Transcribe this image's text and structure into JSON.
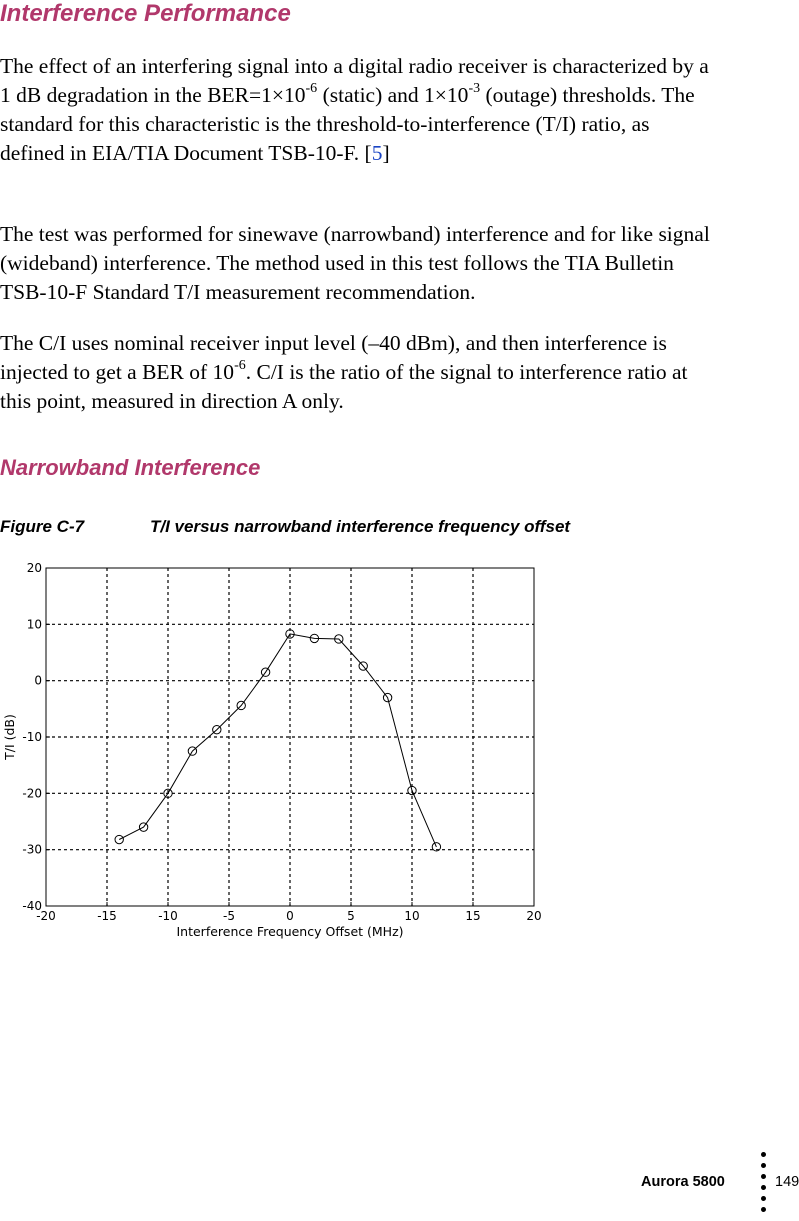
{
  "heading": "Interference Performance",
  "para1": {
    "t1": "The effect of an interfering signal into a digital radio receiver is characterized by a 1 dB degradation in the BER=1×10",
    "s1": "-6",
    "t2": " (static) and 1×10",
    "s2": "-3",
    "t3": " (outage) thresholds. The standard for this characteristic is the threshold-to-interference (T/I) ratio, as defined in EIA/TIA Document TSB-10-F. [",
    "ref": "5",
    "t4": "]"
  },
  "para2": "The test was performed for sinewave (narrowband) interference and for like signal (wideband) interference. The method used in this test follows the TIA Bulletin TSB-10-F Standard T/I measurement recommendation.",
  "para3": {
    "t1": "The C/I uses nominal receiver input level (–40 dBm), and then interference is injected to get a BER of 10",
    "s1": "-6",
    "t2": ". C/I is the ratio of the signal to interference ratio at this point, measured in direction A only."
  },
  "subheading": "Narrowband Interference",
  "figure": {
    "number": "Figure C-7",
    "caption": "T/I versus narrowband interference frequency offset"
  },
  "chart_data": {
    "type": "line",
    "xlabel": "Interference Frequency Offset (MHz)",
    "ylabel": "T/I (dB)",
    "xlim": [
      -20,
      20
    ],
    "ylim": [
      -40,
      20
    ],
    "xticks": [
      -20,
      -15,
      -10,
      -5,
      0,
      5,
      10,
      15,
      20
    ],
    "yticks": [
      20,
      10,
      0,
      -10,
      -20,
      -30,
      -40
    ],
    "grid": true,
    "marker": "circle",
    "series": [
      {
        "x": [
          -14,
          -12,
          -10,
          -8,
          -6,
          -4,
          -2,
          0,
          2,
          4,
          6,
          8,
          10,
          12
        ],
        "y": [
          -28.2,
          -26.0,
          -20.0,
          -12.5,
          -8.7,
          -4.4,
          1.5,
          8.3,
          7.5,
          7.4,
          2.6,
          -3.0,
          -19.5,
          -29.5
        ]
      }
    ]
  },
  "footer": {
    "title": "Aurora 5800",
    "page": "149"
  }
}
